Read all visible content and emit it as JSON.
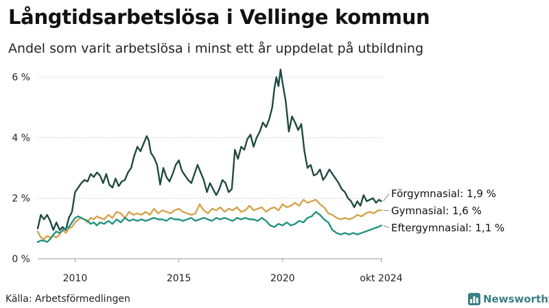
{
  "title": "Långtidsarbetslösa i Vellinge kommun",
  "subtitle": "Andel som varit arbetslösa i minst ett år uppdelat på utbildning",
  "source": "Källa: Arbetsförmedlingen",
  "brand": "Newsworthy",
  "colors": {
    "forgymnasial": "#1f4a3e",
    "gymnasial": "#d4a24a",
    "eftergymnasial": "#20937f",
    "grid": "#d0d0d0",
    "brand": "#3a7e86"
  },
  "chart_data": {
    "type": "line",
    "title": "Långtidsarbetslösa i Vellinge kommun",
    "ylabel": "",
    "xlabel": "",
    "xlim": [
      2008.2,
      2024.8
    ],
    "ylim": [
      0,
      6.4
    ],
    "y_ticks": [
      0,
      2,
      4,
      6
    ],
    "y_tick_labels": [
      "0 %",
      "2 %",
      "4 %",
      "6 %"
    ],
    "x_ticks": [
      2010,
      2015,
      2020,
      2024.75
    ],
    "x_tick_labels": [
      "2010",
      "2015",
      "2020",
      "okt 2024"
    ],
    "series": [
      {
        "name": "Förgymnasial",
        "label": "Förgymnasial: 1,9 %",
        "color": "#1f4a3e",
        "x": [
          2008.2,
          2008.35,
          2008.5,
          2008.65,
          2008.8,
          2008.95,
          2009.1,
          2009.25,
          2009.4,
          2009.55,
          2009.7,
          2009.85,
          2010.0,
          2010.15,
          2010.3,
          2010.45,
          2010.6,
          2010.75,
          2010.9,
          2011.05,
          2011.2,
          2011.35,
          2011.5,
          2011.65,
          2011.8,
          2011.95,
          2012.1,
          2012.25,
          2012.4,
          2012.55,
          2012.7,
          2012.85,
          2013.0,
          2013.15,
          2013.3,
          2013.45,
          2013.55,
          2013.65,
          2013.8,
          2013.95,
          2014.1,
          2014.25,
          2014.4,
          2014.55,
          2014.7,
          2014.85,
          2015.0,
          2015.15,
          2015.3,
          2015.45,
          2015.6,
          2015.75,
          2015.9,
          2016.05,
          2016.2,
          2016.35,
          2016.5,
          2016.65,
          2016.8,
          2016.95,
          2017.1,
          2017.25,
          2017.4,
          2017.55,
          2017.7,
          2017.85,
          2018.0,
          2018.15,
          2018.3,
          2018.45,
          2018.6,
          2018.75,
          2018.9,
          2019.05,
          2019.2,
          2019.35,
          2019.5,
          2019.6,
          2019.7,
          2019.8,
          2019.9,
          2020.0,
          2020.15,
          2020.3,
          2020.45,
          2020.6,
          2020.75,
          2020.9,
          2021.05,
          2021.2,
          2021.35,
          2021.5,
          2021.65,
          2021.8,
          2021.95,
          2022.1,
          2022.25,
          2022.4,
          2022.55,
          2022.7,
          2022.85,
          2023.0,
          2023.15,
          2023.3,
          2023.45,
          2023.6,
          2023.75,
          2023.9,
          2024.05,
          2024.2,
          2024.35,
          2024.5,
          2024.65,
          2024.75
        ],
        "values": [
          1.0,
          1.45,
          1.3,
          1.45,
          1.25,
          0.95,
          1.2,
          0.95,
          1.05,
          0.95,
          1.35,
          1.55,
          2.2,
          2.35,
          2.5,
          2.6,
          2.55,
          2.8,
          2.7,
          2.85,
          2.75,
          2.5,
          2.8,
          2.45,
          2.35,
          2.65,
          2.4,
          2.55,
          2.6,
          2.85,
          3.0,
          3.4,
          3.7,
          3.55,
          3.8,
          4.05,
          3.9,
          3.5,
          3.35,
          3.1,
          2.45,
          3.0,
          2.7,
          2.55,
          2.8,
          3.1,
          3.25,
          2.9,
          2.75,
          2.6,
          2.5,
          2.8,
          3.1,
          2.85,
          2.6,
          2.2,
          2.5,
          2.3,
          2.1,
          2.3,
          2.6,
          2.5,
          2.2,
          2.3,
          3.6,
          3.3,
          3.7,
          3.6,
          3.95,
          4.1,
          3.7,
          4.0,
          4.2,
          4.5,
          4.35,
          4.6,
          5.0,
          5.6,
          6.0,
          5.7,
          6.25,
          5.8,
          5.2,
          4.2,
          4.7,
          4.5,
          4.25,
          4.45,
          3.55,
          3.0,
          3.1,
          2.75,
          2.8,
          2.95,
          2.6,
          2.75,
          2.95,
          2.8,
          2.65,
          2.5,
          2.3,
          2.2,
          2.0,
          1.9,
          1.7,
          1.9,
          1.75,
          2.1,
          1.9,
          1.95,
          2.0,
          1.85,
          1.95,
          1.9
        ]
      },
      {
        "name": "Gymnasial",
        "label": "Gymnasial: 1,6 %",
        "color": "#d4a24a",
        "x": [
          2008.2,
          2008.35,
          2008.5,
          2008.65,
          2008.8,
          2008.95,
          2009.1,
          2009.25,
          2009.4,
          2009.55,
          2009.7,
          2009.85,
          2010.0,
          2010.15,
          2010.3,
          2010.45,
          2010.6,
          2010.75,
          2010.9,
          2011.05,
          2011.2,
          2011.4,
          2011.6,
          2011.8,
          2012.0,
          2012.2,
          2012.4,
          2012.6,
          2012.8,
          2013.0,
          2013.2,
          2013.4,
          2013.6,
          2013.8,
          2014.0,
          2014.2,
          2014.4,
          2014.6,
          2014.8,
          2015.0,
          2015.2,
          2015.4,
          2015.6,
          2015.8,
          2016.0,
          2016.2,
          2016.4,
          2016.6,
          2016.8,
          2017.0,
          2017.2,
          2017.4,
          2017.6,
          2017.8,
          2018.0,
          2018.2,
          2018.4,
          2018.6,
          2018.8,
          2019.0,
          2019.2,
          2019.4,
          2019.6,
          2019.8,
          2020.0,
          2020.2,
          2020.4,
          2020.6,
          2020.8,
          2021.0,
          2021.2,
          2021.4,
          2021.6,
          2021.8,
          2022.0,
          2022.2,
          2022.4,
          2022.6,
          2022.8,
          2023.0,
          2023.2,
          2023.4,
          2023.6,
          2023.8,
          2024.0,
          2024.2,
          2024.4,
          2024.6,
          2024.75
        ],
        "values": [
          0.9,
          0.7,
          0.65,
          0.75,
          0.7,
          0.75,
          0.7,
          0.8,
          0.95,
          0.85,
          1.0,
          1.05,
          1.2,
          1.3,
          1.35,
          1.3,
          1.2,
          1.35,
          1.3,
          1.4,
          1.35,
          1.3,
          1.45,
          1.35,
          1.55,
          1.5,
          1.35,
          1.55,
          1.45,
          1.5,
          1.45,
          1.55,
          1.45,
          1.65,
          1.5,
          1.6,
          1.55,
          1.5,
          1.6,
          1.65,
          1.55,
          1.5,
          1.45,
          1.5,
          1.8,
          1.6,
          1.5,
          1.65,
          1.6,
          1.7,
          1.55,
          1.65,
          1.6,
          1.7,
          1.55,
          1.6,
          1.75,
          1.6,
          1.65,
          1.7,
          1.55,
          1.65,
          1.7,
          1.6,
          1.8,
          1.7,
          1.75,
          1.85,
          1.75,
          1.95,
          1.85,
          1.9,
          1.95,
          1.8,
          1.7,
          1.5,
          1.45,
          1.35,
          1.3,
          1.35,
          1.3,
          1.35,
          1.45,
          1.4,
          1.5,
          1.55,
          1.5,
          1.6,
          1.6
        ]
      },
      {
        "name": "Eftergymnasial",
        "label": "Eftergymnasial: 1,1 %",
        "color": "#20937f",
        "x": [
          2008.2,
          2008.35,
          2008.5,
          2008.65,
          2008.8,
          2008.95,
          2009.1,
          2009.25,
          2009.4,
          2009.55,
          2009.7,
          2009.85,
          2010.0,
          2010.15,
          2010.3,
          2010.45,
          2010.6,
          2010.75,
          2010.9,
          2011.05,
          2011.2,
          2011.4,
          2011.6,
          2011.8,
          2012.0,
          2012.2,
          2012.4,
          2012.6,
          2012.8,
          2013.0,
          2013.2,
          2013.4,
          2013.6,
          2013.8,
          2014.0,
          2014.2,
          2014.4,
          2014.6,
          2014.8,
          2015.0,
          2015.2,
          2015.4,
          2015.6,
          2015.8,
          2016.0,
          2016.2,
          2016.4,
          2016.6,
          2016.8,
          2017.0,
          2017.2,
          2017.4,
          2017.6,
          2017.8,
          2018.0,
          2018.2,
          2018.4,
          2018.6,
          2018.8,
          2019.0,
          2019.2,
          2019.4,
          2019.6,
          2019.8,
          2020.0,
          2020.2,
          2020.4,
          2020.6,
          2020.8,
          2021.0,
          2021.2,
          2021.4,
          2021.6,
          2021.8,
          2022.0,
          2022.2,
          2022.4,
          2022.6,
          2022.8,
          2023.0,
          2023.2,
          2023.4,
          2023.6,
          2023.8,
          2024.0,
          2024.2,
          2024.4,
          2024.6,
          2024.75
        ],
        "values": [
          0.55,
          0.6,
          0.6,
          0.55,
          0.65,
          0.8,
          0.9,
          0.85,
          0.95,
          1.0,
          1.05,
          1.2,
          1.35,
          1.4,
          1.35,
          1.3,
          1.25,
          1.15,
          1.2,
          1.1,
          1.2,
          1.15,
          1.25,
          1.15,
          1.3,
          1.2,
          1.35,
          1.25,
          1.3,
          1.25,
          1.3,
          1.25,
          1.3,
          1.35,
          1.3,
          1.3,
          1.25,
          1.35,
          1.3,
          1.3,
          1.25,
          1.3,
          1.35,
          1.25,
          1.3,
          1.35,
          1.3,
          1.25,
          1.35,
          1.3,
          1.35,
          1.3,
          1.25,
          1.35,
          1.3,
          1.35,
          1.3,
          1.3,
          1.25,
          1.35,
          1.25,
          1.1,
          1.05,
          1.15,
          1.1,
          1.2,
          1.1,
          1.15,
          1.25,
          1.2,
          1.35,
          1.4,
          1.55,
          1.45,
          1.3,
          1.2,
          0.95,
          0.85,
          0.8,
          0.85,
          0.8,
          0.85,
          0.8,
          0.85,
          0.9,
          0.95,
          1.0,
          1.05,
          1.1
        ]
      }
    ]
  }
}
